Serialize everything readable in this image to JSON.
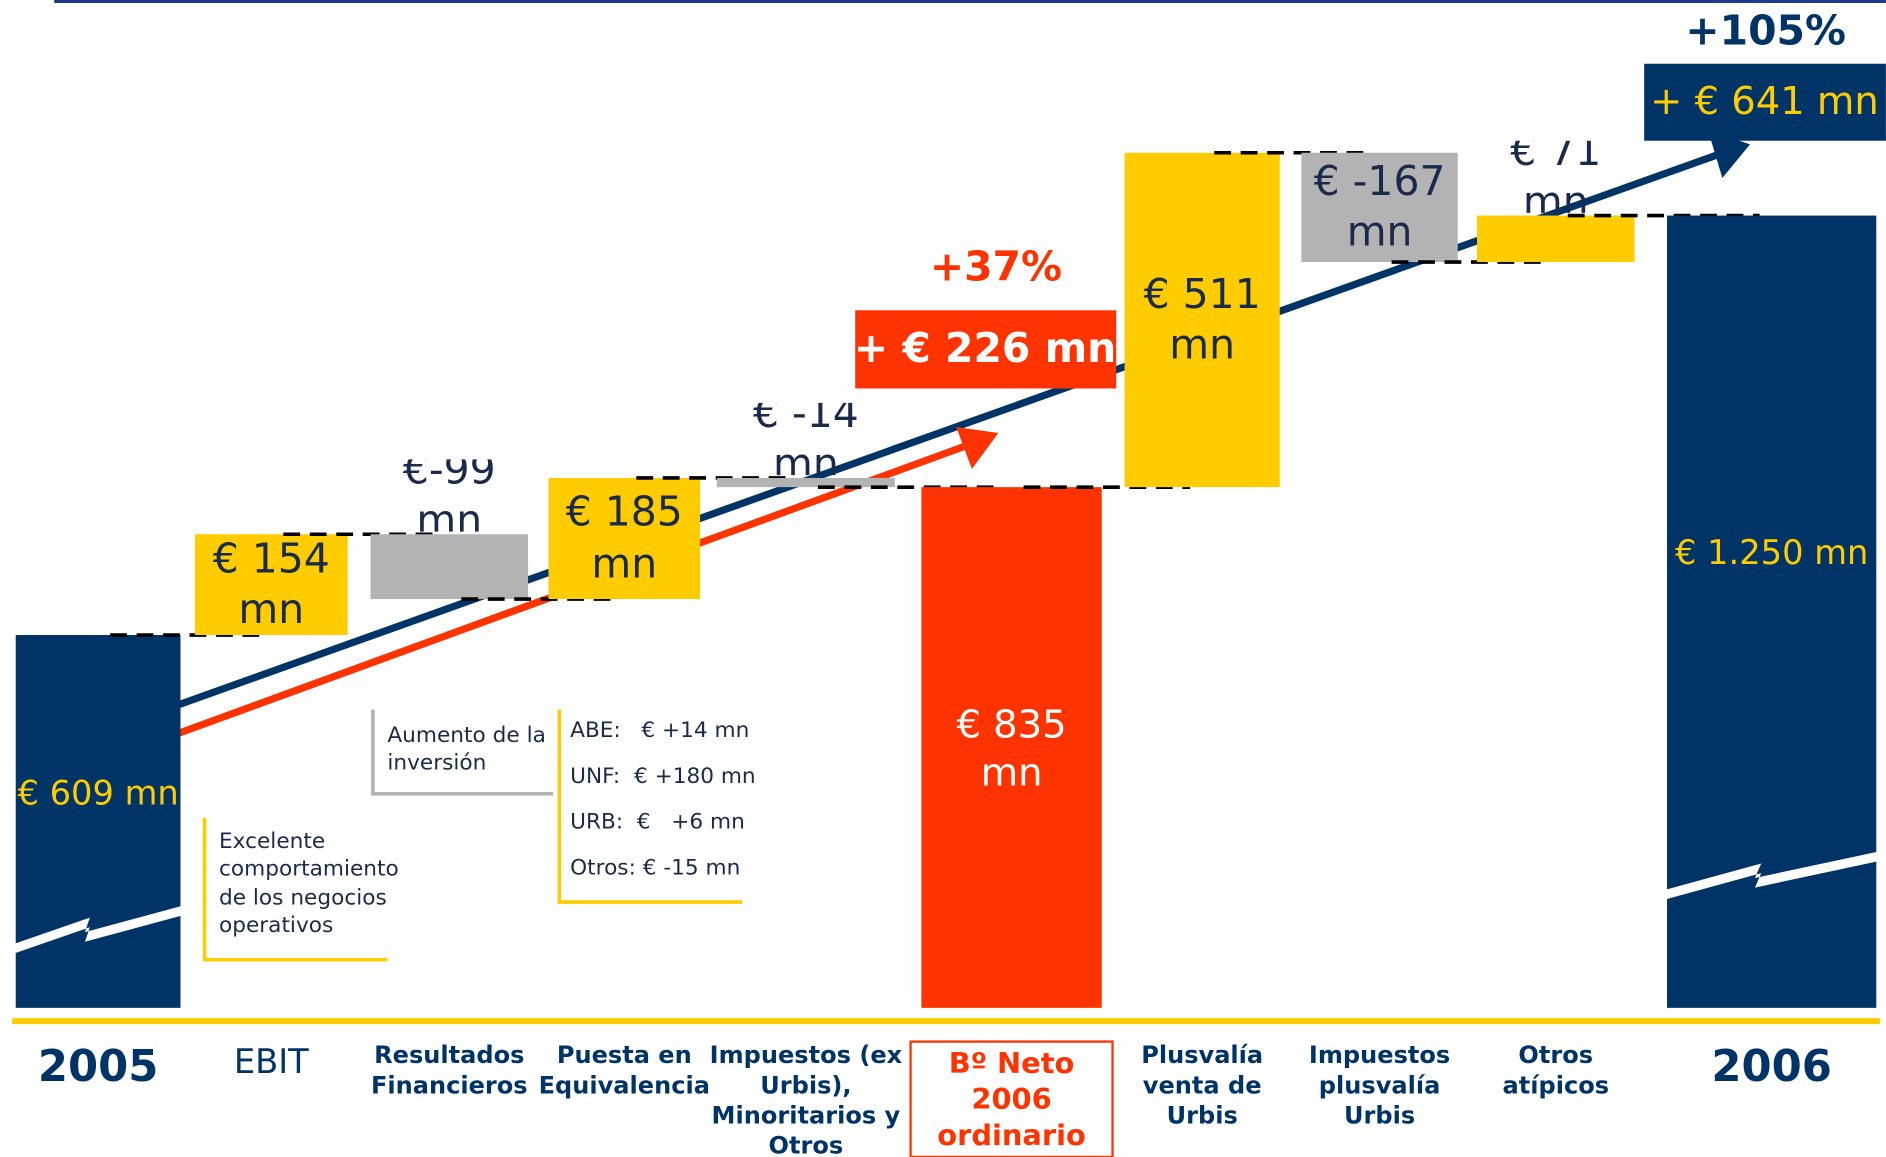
{
  "chart_data": {
    "type": "waterfall",
    "categories": [
      "2005",
      "EBIT",
      "Resultados Financieros",
      "Puesta en Equivalencia",
      "Impuestos (ex Urbis), Minoritarios y Otros Resultados",
      "Bº Neto 2006 ordinario",
      "Plusvalía venta de Urbis",
      "Impuestos plusvalía Urbis",
      "Otros atípicos",
      "2006"
    ],
    "values": [
      609,
      154,
      -99,
      185,
      -14,
      835,
      511,
      -167,
      71,
      1250
    ],
    "value_labels": [
      "€ 609 mn",
      "€ 154 mn",
      "€-99 mn",
      "€ 185 mn",
      "€ -14 mn",
      "€ 835 mn",
      "€ 511 mn",
      "€ -167 mn",
      "€ 71 mn",
      "€ 1.250 mn"
    ],
    "kinds": [
      "total",
      "delta",
      "delta",
      "delta",
      "delta",
      "subtotal",
      "delta",
      "delta",
      "delta",
      "total"
    ],
    "colors": [
      "#003366",
      "#ffcc00",
      "#b3b3b3",
      "#ffcc00",
      "#b3b3b3",
      "#ff3300",
      "#ffcc00",
      "#b3b3b3",
      "#ffcc00",
      "#003366"
    ],
    "annotations": [
      "+37%",
      "+ € 226 mn",
      "+105%",
      "+ € 641 mn"
    ],
    "notes": [
      "Excelente comportamiento de los negocios operativos",
      "Aumento de la inversión"
    ],
    "breakdown": [
      "ABE:   € +14 mn",
      "UNF:  € +180 mn",
      "URB:  €   +6 mn",
      "Otros: € -15 mn"
    ]
  }
}
